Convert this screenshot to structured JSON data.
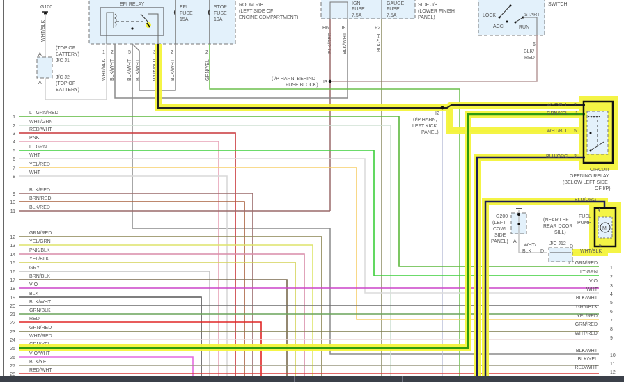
{
  "efi_relay": {
    "title": "EFI RELAY",
    "efi_fuse": [
      "EFI",
      "FUSE",
      "15A"
    ],
    "stop_fuse": [
      "STOP",
      "FUSE",
      "10A"
    ],
    "location": [
      "ROOM R/B",
      "(LEFT SIDE OF",
      "ENGINE COMPARTMENT)"
    ],
    "pins": [
      "1",
      "2",
      "5",
      "3",
      "2",
      "2"
    ],
    "wires": [
      "WHT/BLK",
      "BLK/WHT",
      "BLK/WHT",
      "BLK/WHT",
      "WHT/BLU",
      "BLK/WHT",
      "GRN/YEL"
    ]
  },
  "ground_g100": {
    "label": "G100",
    "wire": "WHT/BLK",
    "pin_a": "A",
    "pin_a2": "A",
    "jc_j1": "J/C J1",
    "jc_j2": "J/C J2",
    "loc1": [
      "(TOP OF",
      "BATTERY)"
    ],
    "loc2": [
      "(TOP OF",
      "BATTERY)"
    ]
  },
  "driver_jb": {
    "ign_fuse": [
      "IGN",
      "FUSE",
      "7.5A"
    ],
    "gauge_fuse": [
      "GAUGE",
      "FUSE",
      "7.5A"
    ],
    "location": [
      "SIDE J/B",
      "(LOWER FINISH",
      "PANEL)"
    ],
    "pins": [
      "H6",
      "J8",
      "F2"
    ],
    "wires": [
      "BLK/RED",
      "BLK/WHT",
      "BLK/YEL"
    ]
  },
  "ignition_switch": {
    "title": "SWITCH",
    "positions": [
      "LOCK",
      "ACC",
      "RUN",
      "START"
    ],
    "pin": "6",
    "wire": [
      "BLK/",
      "RED"
    ]
  },
  "splice_i3": {
    "label": "I3",
    "location": [
      "(I/P HARN, BEHIND",
      "FUSE BLOCK)"
    ]
  },
  "splice_i2": {
    "label": "I2",
    "location": [
      "(I/P HARN,",
      "LEFT KICK",
      "PANEL)"
    ]
  },
  "circuit_opening_relay": {
    "title": [
      "CIRCUIT",
      "OPENING RELAY",
      "(BELOW LEFT SIDE",
      "OF I/P)"
    ],
    "pins": [
      {
        "wire": "WHT/BLU",
        "pin": "2"
      },
      {
        "wire": "GRN/YEL",
        "pin": "1"
      },
      {
        "wire": "WHT/BLU",
        "pin": "5"
      },
      {
        "wire": "BLU/ORG",
        "pin": "3"
      }
    ]
  },
  "fuel_pump": {
    "title": [
      "FUEL",
      "PUMP"
    ],
    "motor": "M",
    "pin_top": "4",
    "pin_bottom": "5",
    "wire_top": "BLU/ORG",
    "wire_bottom": "WHT/BLK"
  },
  "ground_g200": {
    "label": "G200",
    "location": [
      "(LEFT",
      "COWL",
      "SIDE",
      "PANEL)"
    ],
    "pin": "A",
    "wire": [
      "WHT/",
      "BLK"
    ]
  },
  "jc_j12": {
    "label": "J/C J12",
    "pin_left": "D",
    "pin_right": "D",
    "location": [
      "(NEAR LEFT",
      "REAR DOOR",
      "SILL)"
    ]
  },
  "highlight_color": "#f4f43c",
  "left_connector": [
    {
      "num": "1",
      "wire": "LT GRN/RED",
      "color": "#5cb83c"
    },
    {
      "num": "2",
      "wire": "WHT/GRN",
      "color": "#cfe0d4"
    },
    {
      "num": "3",
      "wire": "RED/WHT",
      "color": "#c8363a"
    },
    {
      "num": "4",
      "wire": "PNK",
      "color": "#e7a2b6"
    },
    {
      "num": "5",
      "wire": "LT GRN",
      "color": "#3ccf3a"
    },
    {
      "num": "6",
      "wire": "WHT",
      "color": "#dcdcdc"
    },
    {
      "num": "7",
      "wire": "YEL/RED",
      "color": "#f7cf6a"
    },
    {
      "num": "8",
      "wire": "WHT",
      "color": "#d8d8d8"
    },
    {
      "num": "9",
      "wire": "BLK/RED",
      "color": "#9a6a6a"
    },
    {
      "num": "10",
      "wire": "BRN/RED",
      "color": "#a8603e"
    },
    {
      "num": "11",
      "wire": "BLK/RED",
      "color": "#9a6a6a"
    },
    {
      "num": "12",
      "wire": "GRN/RED",
      "color": "#8a8450"
    },
    {
      "num": "13",
      "wire": "YEL/GRN",
      "color": "#dde46a"
    },
    {
      "num": "14",
      "wire": "PNK/BLK",
      "color": "#d98ca8"
    },
    {
      "num": "15",
      "wire": "YEL/BLK",
      "color": "#d4d256"
    },
    {
      "num": "16",
      "wire": "GRY",
      "color": "#c2c2c2"
    },
    {
      "num": "17",
      "wire": "BRN/BLK",
      "color": "#7a6a4e"
    },
    {
      "num": "18",
      "wire": "VIO",
      "color": "#cc44c8"
    },
    {
      "num": "19",
      "wire": "BLK",
      "color": "#555555"
    },
    {
      "num": "20",
      "wire": "BLK/WHT",
      "color": "#6a6a6a"
    },
    {
      "num": "21",
      "wire": "GRN/BLK",
      "color": "#6aa45a"
    },
    {
      "num": "22",
      "wire": "RED",
      "color": "#e02626"
    },
    {
      "num": "23",
      "wire": "GRN/RED",
      "color": "#7c7a4a"
    },
    {
      "num": "24",
      "wire": "WHT/RED",
      "color": "#ecdada"
    },
    {
      "num": "25",
      "wire": "GRN/YEL",
      "color": "#33a010"
    },
    {
      "num": "26",
      "wire": "VIO/WHT",
      "color": "#e46ae0"
    },
    {
      "num": "27",
      "wire": "BLK/YEL",
      "color": "#9a9880"
    },
    {
      "num": "28",
      "wire": "RED/WHT",
      "color": "#d83a3a"
    }
  ],
  "right_connector": [
    {
      "num": "1",
      "wire": "LT GRN/RED",
      "color": "#5cb83c"
    },
    {
      "num": "2",
      "wire": "LT GRN",
      "color": "#3ccf3a"
    },
    {
      "num": "3",
      "wire": "VIO",
      "color": "#cc44c8"
    },
    {
      "num": "4",
      "wire": "WHT",
      "color": "#dcdcdc"
    },
    {
      "num": "5",
      "wire": "BLK/WHT",
      "color": "#6a6a6a"
    },
    {
      "num": "6",
      "wire": "GRN/BLK",
      "color": "#6aa45a"
    },
    {
      "num": "7",
      "wire": "YEL/RED",
      "color": "#f7cf6a"
    },
    {
      "num": "8",
      "wire": "GRN/RED",
      "color": "#7c7a4a"
    },
    {
      "num": "9",
      "wire": "WHT/RED",
      "color": "#ecdada"
    },
    {
      "num": "10",
      "wire": "BLK/WHT",
      "color": "#8a8a8a"
    },
    {
      "num": "11",
      "wire": "BLK/YEL",
      "color": "#9a9880"
    },
    {
      "num": "12",
      "wire": "RED/WHT",
      "color": "#d83a3a"
    }
  ]
}
